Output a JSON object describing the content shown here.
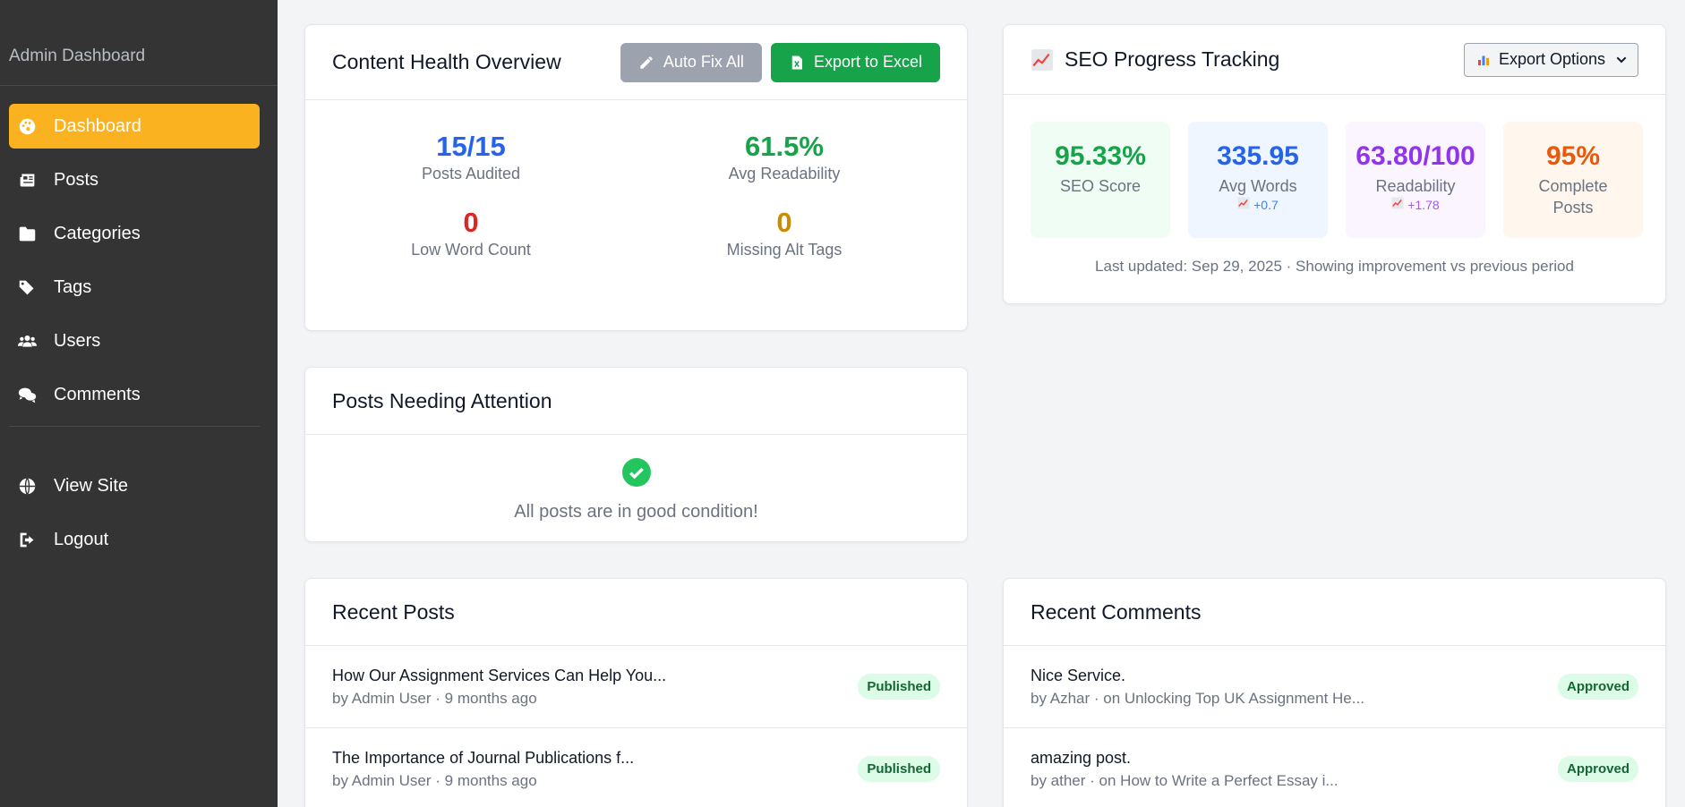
{
  "sidebar": {
    "brand": "Admin Dashboard",
    "items": [
      {
        "label": "Dashboard",
        "icon": "palette-icon",
        "active": true
      },
      {
        "label": "Posts",
        "icon": "newspaper-icon"
      },
      {
        "label": "Categories",
        "icon": "folder-icon"
      },
      {
        "label": "Tags",
        "icon": "tags-icon"
      },
      {
        "label": "Users",
        "icon": "users-icon"
      },
      {
        "label": "Comments",
        "icon": "comments-icon"
      },
      {
        "label": "View Site",
        "icon": "globe-icon"
      },
      {
        "label": "Logout",
        "icon": "logout-icon"
      }
    ]
  },
  "health": {
    "title": "Content Health Overview",
    "auto_fix_label": "Auto Fix All",
    "export_label": "Export to Excel",
    "stats": [
      {
        "value": "15/15",
        "label": "Posts Audited",
        "color": "#2563eb"
      },
      {
        "value": "61.5%",
        "label": "Avg Readability",
        "color": "#16a34a"
      },
      {
        "value": "0",
        "label": "Low Word Count",
        "color": "#dc2626"
      },
      {
        "value": "0",
        "label": "Missing Alt Tags",
        "color": "#ca8a04"
      }
    ]
  },
  "seo": {
    "title": "SEO Progress Tracking",
    "title_icon": "chart-increasing-icon",
    "export_select": "Export Options",
    "boxes": [
      {
        "value": "95.33%",
        "label": "SEO Score",
        "color": "#16a34a",
        "bg": "#f0fdf4"
      },
      {
        "value": "335.95",
        "label": "Avg Words",
        "delta": "+0.7",
        "color": "#2563eb",
        "bg": "#eff6ff"
      },
      {
        "value": "63.80/100",
        "label": "Readability",
        "delta": "+1.78",
        "color": "#9333ea",
        "bg": "#faf5ff"
      },
      {
        "value": "95%",
        "label": "Complete Posts",
        "color": "#ea580c",
        "bg": "#fff7ed"
      }
    ],
    "footer": "Last updated: Sep 29, 2025 · Showing improvement vs previous period"
  },
  "attention": {
    "title": "Posts Needing Attention",
    "message": "All posts are in good condition!"
  },
  "recent_posts": {
    "title": "Recent Posts",
    "items": [
      {
        "title": "How Our Assignment Services Can Help You...",
        "meta": "by Admin User · 9 months ago",
        "status": "Published"
      },
      {
        "title": "The Importance of Journal Publications f...",
        "meta": "by Admin User · 9 months ago",
        "status": "Published"
      }
    ]
  },
  "recent_comments": {
    "title": "Recent Comments",
    "items": [
      {
        "text": "Nice Service.",
        "meta": "by Azhar · on Unlocking Top UK Assignment He...",
        "status": "Approved"
      },
      {
        "text": "amazing post.",
        "meta": "by ather · on How to Write a Perfect Essay i...",
        "status": "Approved"
      }
    ]
  }
}
